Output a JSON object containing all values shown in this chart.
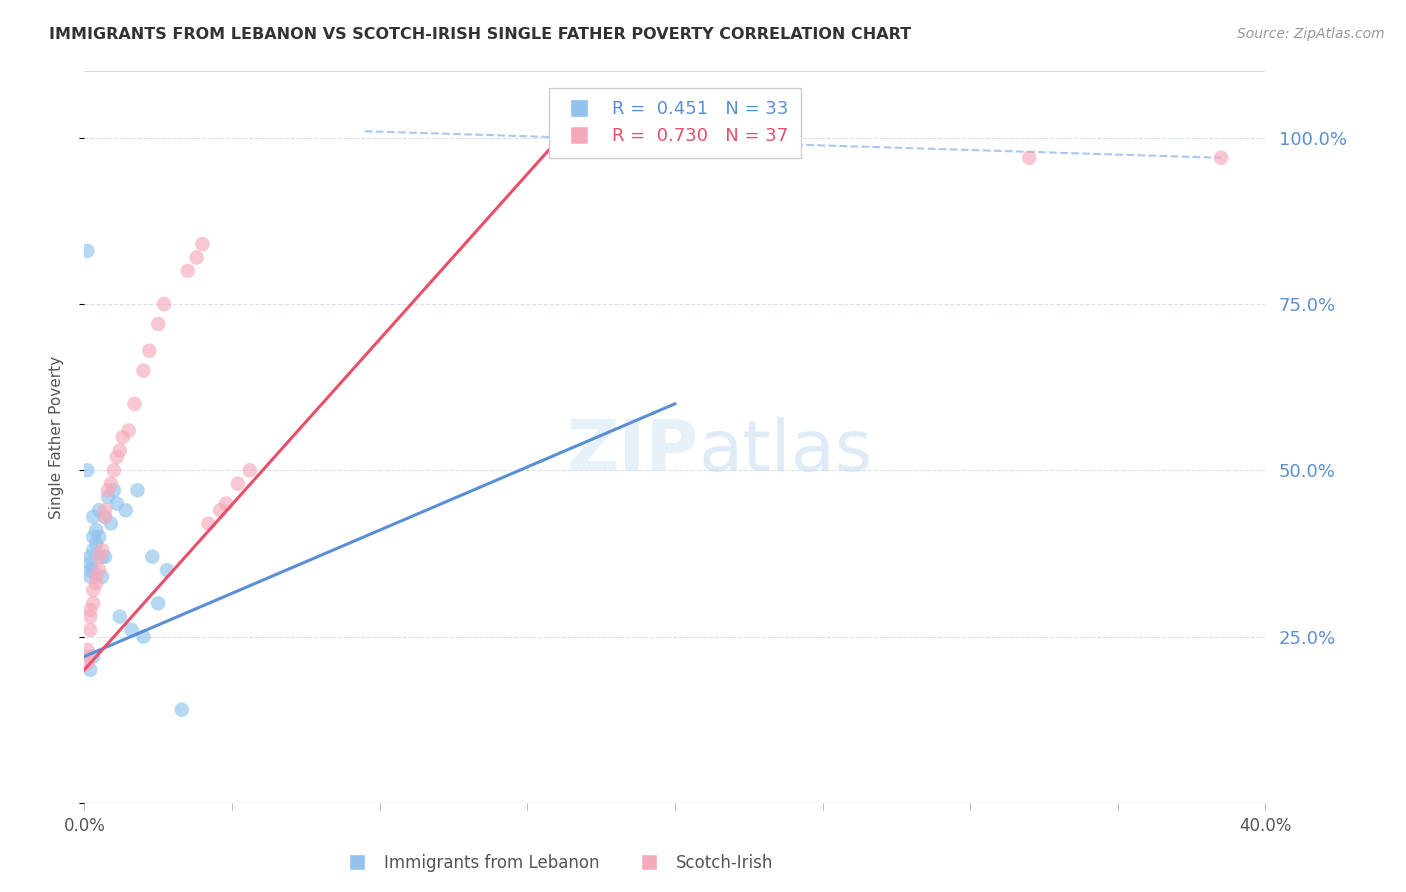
{
  "title": "IMMIGRANTS FROM LEBANON VS SCOTCH-IRISH SINGLE FATHER POVERTY CORRELATION CHART",
  "source": "Source: ZipAtlas.com",
  "ylabel": "Single Father Poverty",
  "xlim": [
    0.0,
    0.4
  ],
  "ylim": [
    0.0,
    1.1
  ],
  "yticks": [
    0.0,
    0.25,
    0.5,
    0.75,
    1.0
  ],
  "ytick_labels_right": [
    "",
    "25.0%",
    "50.0%",
    "75.0%",
    "100.0%"
  ],
  "xticks": [
    0.0,
    0.05,
    0.1,
    0.15,
    0.2,
    0.25,
    0.3,
    0.35,
    0.4
  ],
  "xtick_labels": [
    "0.0%",
    "",
    "",
    "",
    "",
    "",
    "",
    "",
    "40.0%"
  ],
  "legend_label_blue": "R =  0.451   N = 33",
  "legend_label_pink": "R =  0.730   N = 37",
  "legend_label_x_blue": "Immigrants from Lebanon",
  "legend_label_x_pink": "Scotch-Irish",
  "blue_scatter_color": "#91C3EE",
  "pink_scatter_color": "#F5AABB",
  "blue_line_color": "#5B8FD4",
  "pink_line_color": "#E8506A",
  "dashed_line_color": "#A8C8F0",
  "right_axis_color": "#5B8FD4",
  "grid_color": "#D8DFF0",
  "background_color": "#FFFFFF",
  "lebanon_x": [
    0.001,
    0.001,
    0.002,
    0.002,
    0.002,
    0.002,
    0.002,
    0.003,
    0.003,
    0.003,
    0.003,
    0.003,
    0.004,
    0.004,
    0.005,
    0.005,
    0.006,
    0.006,
    0.007,
    0.007,
    0.008,
    0.009,
    0.01,
    0.011,
    0.012,
    0.014,
    0.016,
    0.018,
    0.02,
    0.023,
    0.025,
    0.028,
    0.033
  ],
  "lebanon_y": [
    0.83,
    0.5,
    0.37,
    0.36,
    0.35,
    0.34,
    0.2,
    0.43,
    0.4,
    0.38,
    0.35,
    0.22,
    0.41,
    0.39,
    0.44,
    0.4,
    0.37,
    0.34,
    0.43,
    0.37,
    0.46,
    0.42,
    0.47,
    0.45,
    0.28,
    0.44,
    0.26,
    0.47,
    0.25,
    0.37,
    0.3,
    0.35,
    0.14
  ],
  "scotch_x": [
    0.001,
    0.001,
    0.001,
    0.002,
    0.002,
    0.002,
    0.003,
    0.003,
    0.004,
    0.004,
    0.005,
    0.005,
    0.006,
    0.007,
    0.007,
    0.008,
    0.009,
    0.01,
    0.011,
    0.012,
    0.013,
    0.015,
    0.017,
    0.02,
    0.022,
    0.025,
    0.027,
    0.035,
    0.038,
    0.04,
    0.042,
    0.046,
    0.048,
    0.052,
    0.056,
    0.32,
    0.385
  ],
  "scotch_y": [
    0.21,
    0.23,
    0.22,
    0.26,
    0.28,
    0.29,
    0.3,
    0.32,
    0.34,
    0.33,
    0.35,
    0.37,
    0.38,
    0.43,
    0.44,
    0.47,
    0.48,
    0.5,
    0.52,
    0.53,
    0.55,
    0.56,
    0.6,
    0.65,
    0.68,
    0.72,
    0.75,
    0.8,
    0.82,
    0.84,
    0.42,
    0.44,
    0.45,
    0.48,
    0.5,
    0.97,
    0.97
  ],
  "blue_line_x0": 0.0,
  "blue_line_y0": 0.22,
  "blue_line_x1": 0.2,
  "blue_line_y1": 0.6,
  "pink_line_x0": 0.0,
  "pink_line_y0": 0.2,
  "pink_line_x1": 0.165,
  "pink_line_y1": 1.02,
  "dash_line_x0": 0.095,
  "dash_line_y0": 1.01,
  "dash_line_x1": 0.385,
  "dash_line_y1": 0.97
}
